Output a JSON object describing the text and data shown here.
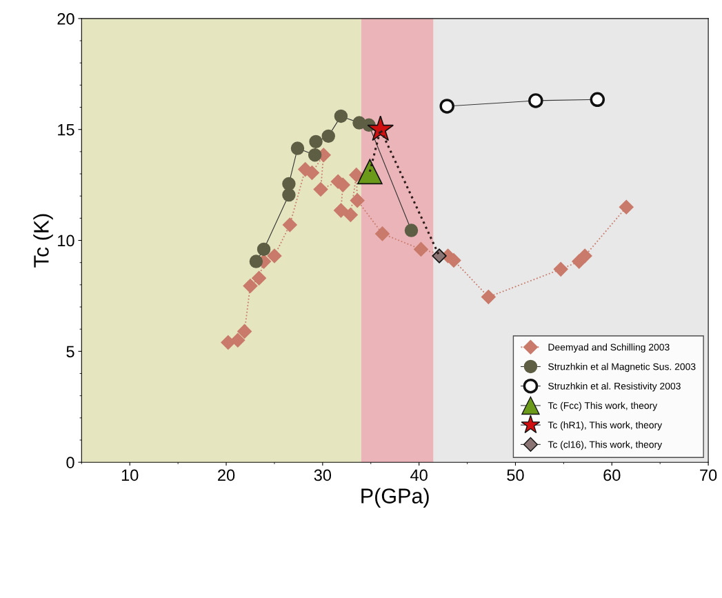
{
  "chart_data": {
    "type": "scatter",
    "xlabel": "P(GPa)",
    "ylabel": "Tc (K)",
    "xlim": [
      5,
      70
    ],
    "ylim": [
      0,
      20
    ],
    "xticks": [
      10,
      20,
      30,
      40,
      50,
      60,
      70
    ],
    "yticks": [
      0,
      5,
      10,
      15,
      20
    ],
    "grid": false,
    "legend": "bottom right",
    "bands": [
      {
        "axis": "x",
        "from": 5,
        "to": 34,
        "color": "#e5e5c0"
      },
      {
        "axis": "x",
        "from": 34,
        "to": 41.5,
        "color": "#eab4b8"
      },
      {
        "axis": "x",
        "from": 41.5,
        "to": 70,
        "color": "#e8e8e8"
      }
    ],
    "series": [
      {
        "name": "Deemyad and Schilling 2003",
        "type": "line",
        "marker": "diamond",
        "line_style": "dotted",
        "color": "#c97a6a",
        "x": [
          20.2,
          21.2,
          21.9,
          22.5,
          23.4,
          23.9,
          25.0,
          26.6,
          28.2,
          28.9,
          30.1,
          29.8,
          31.6,
          32.1,
          31.9,
          32.9,
          33.5,
          33.6,
          36.2,
          40.2,
          43.0,
          43.6,
          47.2,
          54.7,
          56.6,
          57.2,
          61.5
        ],
        "values": [
          5.4,
          5.5,
          5.9,
          7.95,
          8.3,
          9.05,
          9.3,
          10.7,
          13.2,
          13.05,
          13.85,
          12.3,
          12.65,
          12.5,
          11.35,
          11.15,
          12.95,
          11.8,
          10.3,
          9.6,
          9.3,
          9.1,
          7.45,
          8.7,
          9.05,
          9.3,
          11.5
        ]
      },
      {
        "name": "Struzhkin et al Magnetic Sus. 2003",
        "type": "line",
        "marker": "circle",
        "line_style": "solid",
        "color": "#5e5e45",
        "x": [
          23.1,
          23.9,
          26.5,
          26.5,
          27.4,
          29.2,
          29.3,
          30.6,
          31.9,
          33.8,
          34.8,
          39.2
        ],
        "values": [
          9.05,
          9.6,
          12.05,
          12.55,
          14.15,
          13.85,
          14.45,
          14.7,
          15.6,
          15.3,
          15.2,
          10.45
        ]
      },
      {
        "name": "Struzhkin et al. Resistivity 2003",
        "type": "line",
        "marker": "circle",
        "line_style": "solid",
        "color": "#ffffff",
        "x": [
          42.9,
          52.1,
          58.5
        ],
        "values": [
          16.05,
          16.3,
          16.35
        ]
      },
      {
        "type": "line",
        "marker": "none",
        "line_style": "dotted",
        "color": "#2a1a1a",
        "x": [
          34.9,
          36.0,
          42.1
        ],
        "values": [
          13.1,
          15.0,
          9.3
        ]
      },
      {
        "name": "Tc (Fcc) This work, theory",
        "marker": "triangle",
        "color": "#6b9a1a",
        "x": [
          34.9
        ],
        "values": [
          13.1
        ]
      },
      {
        "name": "Tc (hR1), This work, theory",
        "marker": "star",
        "color": "#d01010",
        "x": [
          36.0
        ],
        "values": [
          15.0
        ]
      },
      {
        "name": "Tc (cl16), This work, theory",
        "marker": "diamond",
        "color": "#8a7474",
        "x": [
          42.1
        ],
        "values": [
          9.3
        ]
      }
    ]
  }
}
